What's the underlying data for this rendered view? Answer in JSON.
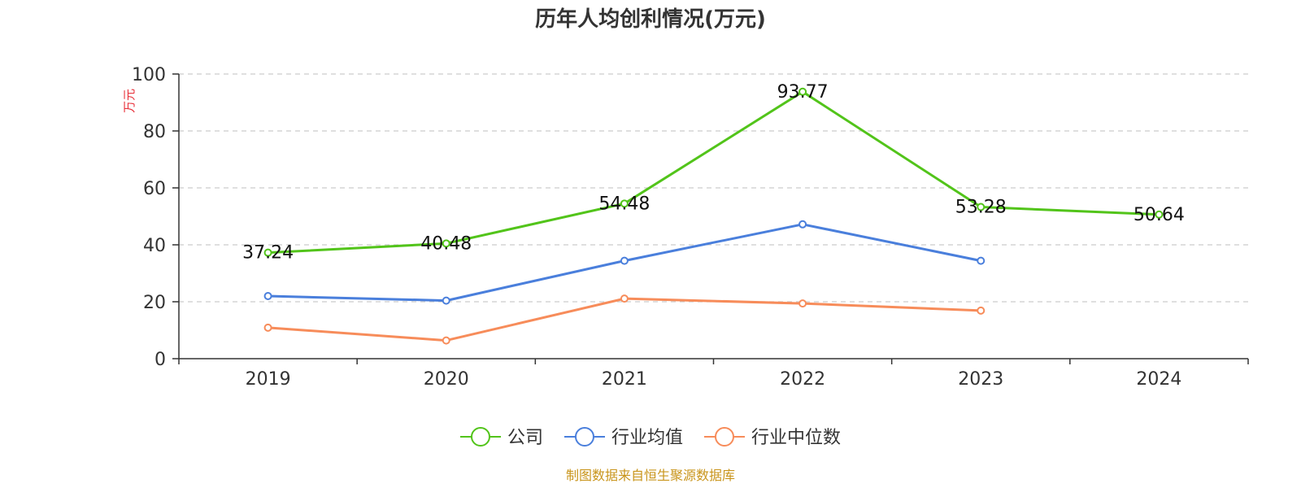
{
  "chart_data": {
    "type": "line",
    "title": "历年人均创利情况(万元)",
    "ylabel": "万元",
    "xlabel": "",
    "categories": [
      "2019",
      "2020",
      "2021",
      "2022",
      "2023",
      "2024"
    ],
    "ylim": [
      0,
      100
    ],
    "yticks": [
      0,
      20,
      40,
      60,
      80,
      100
    ],
    "grid": true,
    "legend_position": "bottom-center",
    "series": [
      {
        "name": "公司",
        "color": "#52c41a",
        "values": [
          37.24,
          40.48,
          54.48,
          93.77,
          53.28,
          50.64
        ],
        "labels": [
          "37.24",
          "40.48",
          "54.48",
          "93.77",
          "53.28",
          "50.64"
        ]
      },
      {
        "name": "行业均值",
        "color": "#4a7fdc",
        "values": [
          22.0,
          20.4,
          34.4,
          47.2,
          34.4,
          null
        ],
        "labels": null
      },
      {
        "name": "行业中位数",
        "color": "#f78c5a",
        "values": [
          10.9,
          6.4,
          21.1,
          19.4,
          16.9,
          null
        ],
        "labels": null
      }
    ]
  },
  "source_text": "制图数据来自恒生聚源数据库"
}
